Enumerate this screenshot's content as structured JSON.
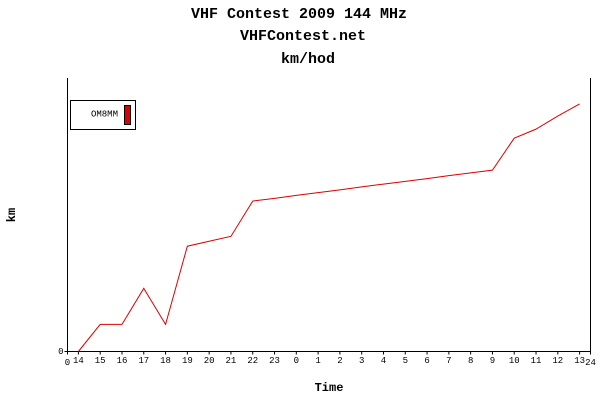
{
  "chart_data": {
    "type": "line",
    "title": "VHF Contest 2009 144 MHz",
    "subtitle": "VHFContest.net",
    "subtitle2": "km/hod",
    "x_label": "Time",
    "y_label": "km",
    "xlim": [
      0,
      24
    ],
    "ylim": [
      0,
      100
    ],
    "yticks": [
      0
    ],
    "xticks": [
      0,
      {
        "value": 0.5,
        "label": "14"
      },
      {
        "value": 1.5,
        "label": "15"
      },
      {
        "value": 2.5,
        "label": "16"
      },
      {
        "value": 3.5,
        "label": "17"
      },
      {
        "value": 4.5,
        "label": "18"
      },
      {
        "value": 5.5,
        "label": "19"
      },
      {
        "value": 6.5,
        "label": "20"
      },
      {
        "value": 7.5,
        "label": "21"
      },
      {
        "value": 8.5,
        "label": "22"
      },
      {
        "value": 9.5,
        "label": "23"
      },
      {
        "value": 10.5,
        "label": "0"
      },
      {
        "value": 11.5,
        "label": "1"
      },
      {
        "value": 12.5,
        "label": "2"
      },
      {
        "value": 13.5,
        "label": "3"
      },
      {
        "value": 14.5,
        "label": "4"
      },
      {
        "value": 15.5,
        "label": "5"
      },
      {
        "value": 16.5,
        "label": "6"
      },
      {
        "value": 17.5,
        "label": "7"
      },
      {
        "value": 18.5,
        "label": "8"
      },
      {
        "value": 19.5,
        "label": "9"
      },
      {
        "value": 20.5,
        "label": "10"
      },
      {
        "value": 21.5,
        "label": "11"
      },
      {
        "value": 22.5,
        "label": "12"
      },
      {
        "value": 23.5,
        "label": "13"
      },
      24
    ],
    "x": [
      0.5,
      1.5,
      2.5,
      3.5,
      4.5,
      5.5,
      6.5,
      7.5,
      8.5,
      9.5,
      10.5,
      11.5,
      12.5,
      13.5,
      14.5,
      15.5,
      16.5,
      17.5,
      18.5,
      19.5,
      20.5,
      21.5,
      22.5,
      23.5
    ],
    "series": [
      {
        "name": "OM8MM",
        "color": "#dd0000",
        "values": [
          0,
          9.9,
          9.9,
          23.1,
          9.9,
          38.5,
          40.3,
          42.1,
          55,
          56,
          57.1,
          58.1,
          59.1,
          60.2,
          61.2,
          62.2,
          63.2,
          64.3,
          65.3,
          66.3,
          78,
          81.3,
          86.1,
          90.5
        ]
      }
    ]
  }
}
